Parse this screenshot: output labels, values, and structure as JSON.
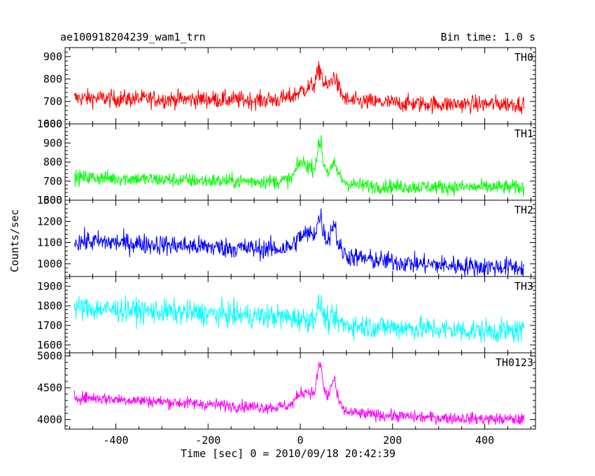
{
  "header": {
    "title": "ae100918204239_wam1_trn",
    "bin_time": "Bin time: 1.0 s"
  },
  "chart_data": {
    "type": "line",
    "title": "ae100918204239_wam1_trn",
    "subtitle": "Bin time: 1.0 s",
    "xlabel": "Time [sec] 0 = 2010/09/18 20:42:39",
    "ylabel": "Counts/sec",
    "xlim": [
      -510,
      510
    ],
    "xticks": [
      -400,
      -200,
      0,
      200,
      400
    ],
    "grid": false,
    "panels": [
      {
        "name": "TH0",
        "color": "#ff0000",
        "ylim": [
          600,
          940
        ],
        "yticks": [
          600,
          700,
          800,
          900
        ],
        "x": [
          -490,
          -450,
          -400,
          -350,
          -300,
          -250,
          -200,
          -150,
          -100,
          -50,
          -20,
          0,
          15,
          30,
          40,
          45,
          50,
          60,
          70,
          75,
          80,
          90,
          100,
          120,
          150,
          200,
          250,
          300,
          350,
          400,
          450,
          485
        ],
        "y": [
          715,
          715,
          712,
          712,
          710,
          710,
          710,
          708,
          705,
          708,
          720,
          745,
          760,
          775,
          835,
          840,
          780,
          765,
          805,
          815,
          775,
          730,
          705,
          700,
          698,
          693,
          690,
          688,
          688,
          688,
          690,
          688
        ]
      },
      {
        "name": "TH1",
        "color": "#00ff00",
        "ylim": [
          600,
          1000
        ],
        "yticks": [
          600,
          700,
          800,
          900,
          1000
        ],
        "x": [
          -490,
          -450,
          -400,
          -350,
          -300,
          -250,
          -200,
          -150,
          -100,
          -50,
          -20,
          0,
          15,
          30,
          40,
          45,
          50,
          60,
          70,
          75,
          80,
          90,
          100,
          120,
          150,
          200,
          250,
          300,
          350,
          400,
          450,
          485
        ],
        "y": [
          718,
          718,
          715,
          712,
          708,
          705,
          702,
          700,
          700,
          698,
          710,
          800,
          785,
          765,
          880,
          915,
          795,
          745,
          770,
          785,
          755,
          712,
          690,
          680,
          675,
          672,
          670,
          670,
          668,
          668,
          668,
          665
        ]
      },
      {
        "name": "TH2",
        "color": "#0000ff",
        "ylim": [
          940,
          1300
        ],
        "yticks": [
          1000,
          1100,
          1200,
          1300
        ],
        "x": [
          -490,
          -450,
          -400,
          -350,
          -300,
          -250,
          -200,
          -150,
          -100,
          -50,
          -20,
          0,
          15,
          30,
          40,
          45,
          50,
          60,
          70,
          75,
          80,
          90,
          100,
          120,
          150,
          200,
          250,
          300,
          350,
          400,
          450,
          485
        ],
        "y": [
          1105,
          1105,
          1100,
          1095,
          1090,
          1085,
          1080,
          1075,
          1072,
          1070,
          1080,
          1130,
          1140,
          1140,
          1210,
          1220,
          1150,
          1110,
          1180,
          1195,
          1110,
          1060,
          1040,
          1030,
          1020,
          1010,
          1000,
          995,
          990,
          985,
          985,
          980
        ]
      },
      {
        "name": "TH3",
        "color": "#00ffff",
        "ylim": [
          1560,
          1950
        ],
        "yticks": [
          1600,
          1700,
          1800,
          1900
        ],
        "x": [
          -490,
          -450,
          -400,
          -350,
          -300,
          -250,
          -200,
          -150,
          -100,
          -50,
          -20,
          0,
          15,
          30,
          40,
          45,
          50,
          60,
          70,
          75,
          80,
          90,
          100,
          120,
          150,
          200,
          250,
          300,
          350,
          400,
          450,
          485
        ],
        "y": [
          1790,
          1785,
          1780,
          1775,
          1770,
          1765,
          1760,
          1755,
          1748,
          1745,
          1738,
          1735,
          1730,
          1740,
          1800,
          1810,
          1750,
          1720,
          1730,
          1735,
          1720,
          1710,
          1700,
          1700,
          1695,
          1690,
          1685,
          1680,
          1675,
          1672,
          1670,
          1668
        ]
      },
      {
        "name": "TH0123",
        "color": "#ff00ff",
        "ylim": [
          3850,
          5050
        ],
        "yticks": [
          4000,
          4500,
          5000
        ],
        "x": [
          -490,
          -450,
          -400,
          -350,
          -300,
          -250,
          -200,
          -150,
          -100,
          -50,
          -20,
          0,
          15,
          30,
          40,
          45,
          50,
          60,
          70,
          75,
          80,
          90,
          100,
          120,
          150,
          200,
          250,
          300,
          350,
          400,
          450,
          485
        ],
        "y": [
          4350,
          4340,
          4320,
          4300,
          4280,
          4260,
          4240,
          4220,
          4200,
          4195,
          4230,
          4420,
          4450,
          4400,
          4820,
          4880,
          4500,
          4350,
          4600,
          4650,
          4350,
          4180,
          4120,
          4100,
          4080,
          4060,
          4040,
          4030,
          4020,
          4010,
          4005,
          4000
        ]
      }
    ]
  }
}
